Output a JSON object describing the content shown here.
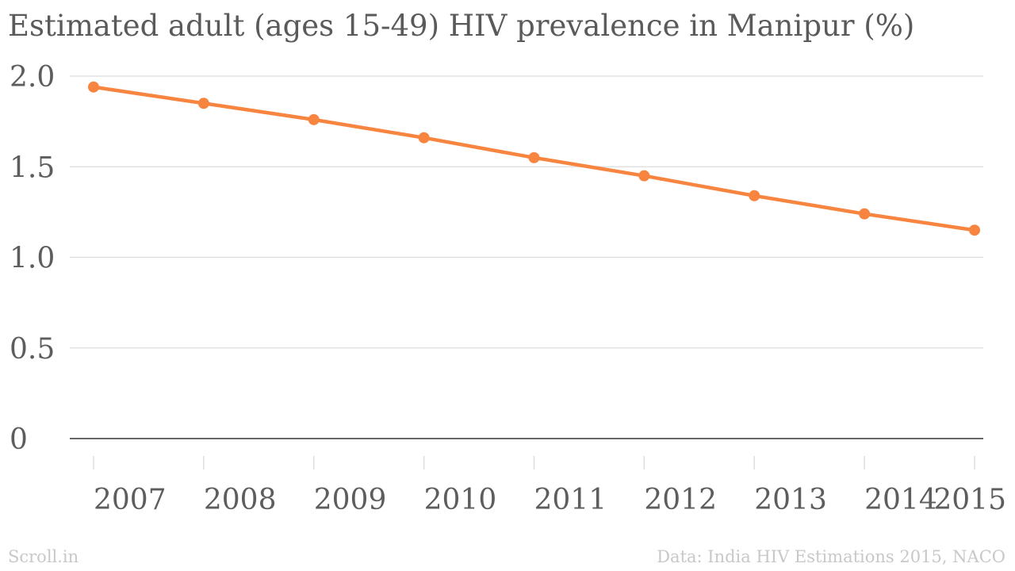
{
  "chart_data": {
    "type": "line",
    "title": "Estimated adult (ages 15-49) HIV prevalence in Manipur (%)",
    "xlabel": "",
    "ylabel": "",
    "categories": [
      "2007",
      "2008",
      "2009",
      "2010",
      "2011",
      "2012",
      "2013",
      "2014",
      "2015"
    ],
    "series": [
      {
        "values": [
          1.94,
          1.85,
          1.76,
          1.66,
          1.55,
          1.45,
          1.34,
          1.24,
          1.15
        ],
        "color": "#f7843f"
      }
    ],
    "ylim": [
      0,
      2.0
    ],
    "yticks": [
      "0",
      "0.5",
      "1.0",
      "1.5",
      "2.0"
    ],
    "grid": true,
    "legend": "none"
  },
  "footer": {
    "source_brand": "Scroll.in",
    "data_credit": "Data: India HIV Estimations 2015, NACO"
  }
}
